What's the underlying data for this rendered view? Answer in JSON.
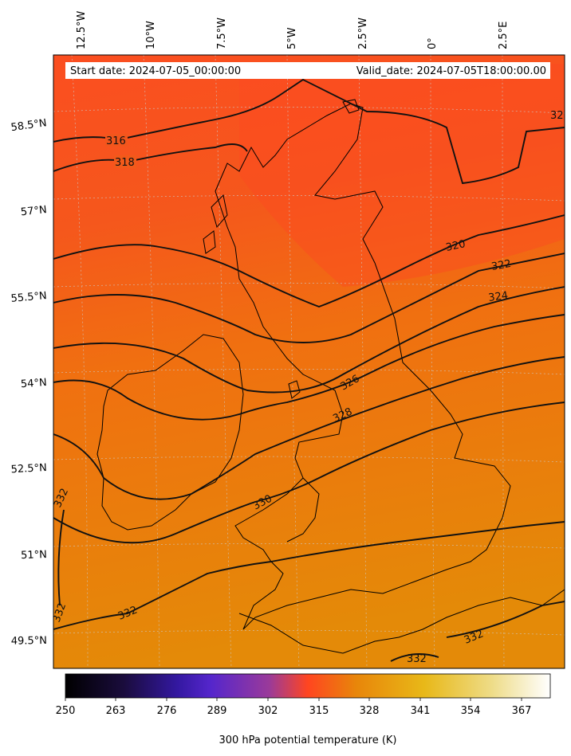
{
  "header": {
    "start_date": "Start date: 2024-07-05_00:00:00",
    "valid_date": "Valid_date: 2024-07-05T18:00:00.00"
  },
  "longitude_labels": [
    "12.5°W",
    "10°W",
    "7.5°W",
    "5°W",
    "2.5°W",
    "0°",
    "2.5°E"
  ],
  "latitude_labels": [
    "58.5°N",
    "57°N",
    "55.5°N",
    "54°N",
    "52.5°N",
    "51°N",
    "49.5°N"
  ],
  "contour_labels": [
    {
      "text": "316"
    },
    {
      "text": "318"
    },
    {
      "text": "32"
    },
    {
      "text": "320"
    },
    {
      "text": "322"
    },
    {
      "text": "324"
    },
    {
      "text": "326"
    },
    {
      "text": "328"
    },
    {
      "text": "330"
    },
    {
      "text": "332"
    },
    {
      "text": "332"
    },
    {
      "text": "332"
    },
    {
      "text": "332"
    },
    {
      "text": "332"
    }
  ],
  "colorbar": {
    "ticks": [
      "250",
      "263",
      "276",
      "289",
      "302",
      "315",
      "328",
      "341",
      "354",
      "367"
    ],
    "label": "300 hPa potential temperature (K)",
    "colors": [
      "#000000",
      "#1a0c3c",
      "#3318a0",
      "#5526cc",
      "#9a3a9a",
      "#ff4520",
      "#e8860a",
      "#e8b818",
      "#eedc88",
      "#ffffff"
    ]
  },
  "field_colors": {
    "north": "#fb4e20",
    "middle": "#f07010",
    "south": "#e48a08"
  }
}
